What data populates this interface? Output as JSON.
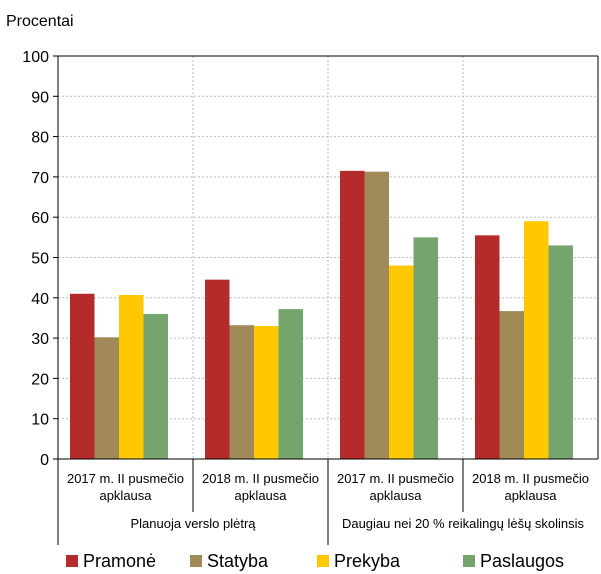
{
  "chart_data": {
    "type": "bar",
    "ylabel": "Procentai",
    "ylim": [
      0,
      100
    ],
    "yticks": [
      0,
      10,
      20,
      30,
      40,
      50,
      60,
      70,
      80,
      90,
      100
    ],
    "grid": "horizontal dashed",
    "legend_position": "bottom",
    "groups": [
      {
        "label": "Planuoja verslo plėtrą",
        "categories": [
          {
            "line1": "2017 m. II pusmečio",
            "line2": "apklausa"
          },
          {
            "line1": "2018 m. II pusmečio",
            "line2": "apklausa"
          }
        ]
      },
      {
        "label": "Daugiau nei 20 % reikalingų lėšų skolinsis",
        "categories": [
          {
            "line1": "2017 m. II pusmečio",
            "line2": "apklausa"
          },
          {
            "line1": "2018 m. II pusmečio",
            "line2": "apklausa"
          }
        ]
      }
    ],
    "series": [
      {
        "name": "Pramonė",
        "color": "#b42b2b",
        "values": [
          41,
          44.5,
          71.5,
          55.5
        ]
      },
      {
        "name": "Statyba",
        "color": "#a08a58",
        "values": [
          30.2,
          33.2,
          71.3,
          36.7
        ]
      },
      {
        "name": "Prekyba",
        "color": "#ffc800",
        "values": [
          40.7,
          33,
          48,
          59
        ]
      },
      {
        "name": "Paslaugos",
        "color": "#75a56d",
        "values": [
          36,
          37.2,
          55,
          53
        ]
      }
    ]
  }
}
